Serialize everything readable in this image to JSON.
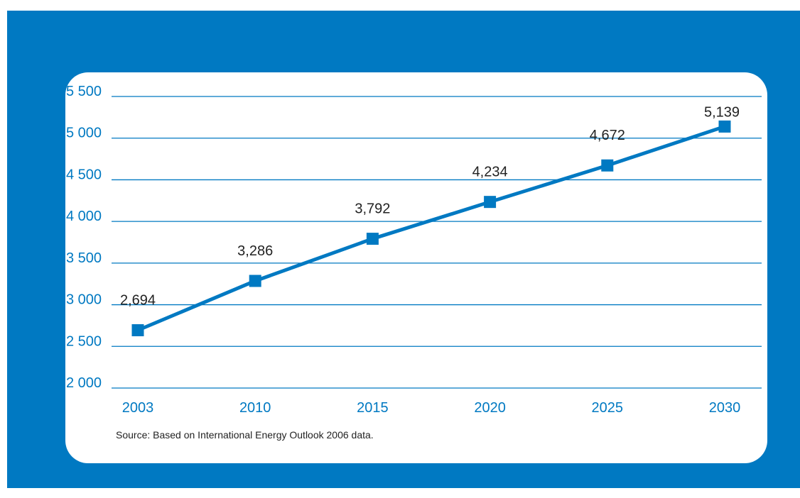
{
  "colors": {
    "frame": "#0079c2",
    "card": "#ffffff",
    "accent": "#0079c2",
    "label_text": "#222222"
  },
  "chart_data": {
    "type": "line",
    "title": "",
    "xlabel": "",
    "ylabel": "",
    "ylim": [
      2000,
      5500
    ],
    "grid": true,
    "yticks": [
      {
        "value": 5500,
        "label": "5 500"
      },
      {
        "value": 5000,
        "label": "5 000"
      },
      {
        "value": 4500,
        "label": "4 500"
      },
      {
        "value": 4000,
        "label": "4 000"
      },
      {
        "value": 3500,
        "label": "3 500"
      },
      {
        "value": 3000,
        "label": "3 000"
      },
      {
        "value": 2500,
        "label": "2 500"
      },
      {
        "value": 2000,
        "label": "2 000"
      }
    ],
    "categories": [
      "2003",
      "2010",
      "2015",
      "2020",
      "2025",
      "2030"
    ],
    "series": [
      {
        "marker": "square",
        "color": "#0079c2",
        "values": [
          2694,
          3286,
          3792,
          4234,
          4672,
          5139
        ],
        "data_labels": [
          "2,694",
          "3,286",
          "3,792",
          "4,234",
          "4,672",
          "5,139"
        ]
      }
    ]
  },
  "source_note": "Source: Based on International Energy Outlook 2006 data."
}
